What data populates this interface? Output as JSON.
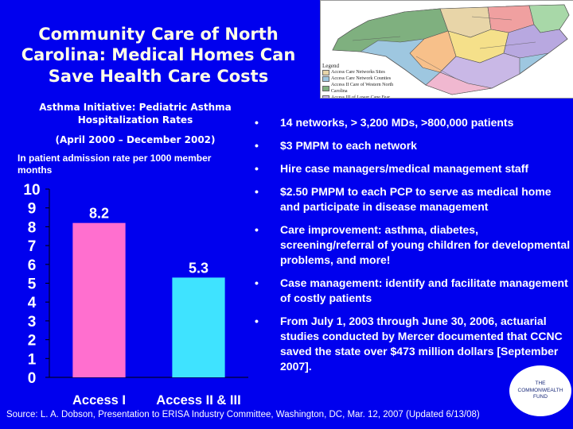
{
  "title": "Community Care of North Carolina: Medical Homes Can Save Health Care Costs",
  "chart_data": {
    "type": "bar",
    "title": "Asthma Initiative: Pediatric Asthma Hospitalization Rates",
    "subtitle": "(April 2000 – December 2002)",
    "ylabel": "In patient admission rate per 1000 member months",
    "categories": [
      "Access I",
      "Access II & III"
    ],
    "values": [
      8.2,
      5.3
    ],
    "data_labels": [
      "8.2",
      "5.3"
    ],
    "ylim": [
      0,
      10
    ],
    "yticks": [
      "0",
      "1",
      "2",
      "3",
      "4",
      "5",
      "6",
      "7",
      "8",
      "9",
      "10"
    ],
    "colors": [
      "#ff6fcf",
      "#3fe3ff"
    ],
    "grid": false,
    "legend": "none"
  },
  "map": {
    "legend_title": "Legend",
    "legend_items": [
      {
        "label": "Access Care Networks Sites",
        "color": "#e8d5a8"
      },
      {
        "label": "Access Care Network Counties",
        "color": "#9ec7e0"
      },
      {
        "label": "Access II Care of Western North Carolina",
        "color": "#7fb07f"
      },
      {
        "label": "Access III of Lower Cape Fear",
        "color": "#c9b8e6"
      }
    ]
  },
  "bullet_glyph": "•",
  "bullets": [
    "14 networks, > 3,200 MDs, >800,000 patients",
    "$3 PMPM to each network",
    "Hire case managers/medical management staff",
    "$2.50 PMPM to each PCP to serve as medical home and participate in disease management",
    "Care improvement: asthma, diabetes, screening/referral of young children for developmental problems, and more!",
    "Case management: identify and facilitate management of costly patients",
    "From July 1, 2003 through June 30, 2006, actuarial studies conducted by Mercer documented that CCNC saved the state over $473 million dollars [September 2007]."
  ],
  "source": "Source: L. A. Dobson, Presentation to ERISA Industry Committee, Washington, DC, Mar. 12, 2007 (Updated 6/13/08)",
  "logo": {
    "line1": "THE",
    "line2": "COMMONWEALTH",
    "line3": "FUND"
  }
}
